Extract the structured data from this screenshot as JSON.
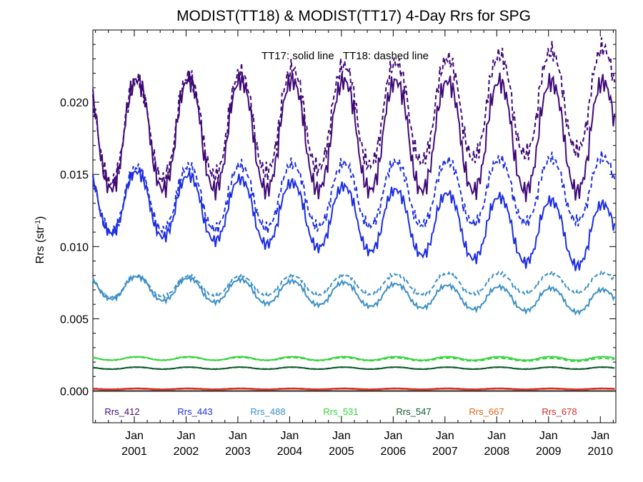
{
  "chart_data": {
    "type": "line",
    "title": "MODIST(TT18) & MODIST(TT17) 4-Day Rrs for SPG",
    "annotation": "TT17: solid line   TT18: dashed line",
    "ylabel_main": "Rrs (str",
    "ylabel_sup": "-1",
    "ylabel_end": ")",
    "xlabel": "",
    "xlim": [
      2000.2,
      2010.3
    ],
    "ylim": [
      -0.0022,
      0.025
    ],
    "y_ticks": [
      0.0,
      0.005,
      0.01,
      0.015,
      0.02
    ],
    "y_tick_labels": [
      "0.000",
      "0.005",
      "0.010",
      "0.015",
      "0.020"
    ],
    "x_ticks": [
      2001.0,
      2002.0,
      2003.0,
      2004.0,
      2005.0,
      2006.0,
      2007.0,
      2008.0,
      2009.0,
      2010.0
    ],
    "x_tick_labels_top": [
      "Jan",
      "Jan",
      "Jan",
      "Jan",
      "Jan",
      "Jan",
      "Jan",
      "Jan",
      "Jan",
      "Jan"
    ],
    "x_tick_labels_bottom": [
      "2001",
      "2002",
      "2003",
      "2004",
      "2005",
      "2006",
      "2007",
      "2008",
      "2009",
      "2010"
    ],
    "solid_series_label": "TT17",
    "dashed_series_label": "TT18",
    "series": [
      {
        "name": "Rrs_412",
        "color": "#3f0a78",
        "base": 0.0178,
        "amp17": 0.0038,
        "amp18": 0.0035,
        "trend17": -2e-05,
        "trend18": 0.00025
      },
      {
        "name": "Rrs_443",
        "color": "#1c2ee0",
        "base": 0.0132,
        "amp17": 0.0022,
        "amp18": 0.0022,
        "trend17": -0.00025,
        "trend18": 8e-05
      },
      {
        "name": "Rrs_488",
        "color": "#3b8fc7",
        "base": 0.0072,
        "amp17": 0.0008,
        "amp18": 0.0007,
        "trend17": -0.0001,
        "trend18": 3e-05
      },
      {
        "name": "Rrs_531",
        "color": "#33d43a",
        "base": 0.00225,
        "amp17": 0.00012,
        "amp18": 0.0001,
        "trend17": 0.0,
        "trend18": -1e-05
      },
      {
        "name": "Rrs_547",
        "color": "#0b5b2a",
        "base": 0.00158,
        "amp17": 7e-05,
        "amp18": 6e-05,
        "trend17": 0.0,
        "trend18": 0.0
      },
      {
        "name": "Rrs_667",
        "color": "#e0661a",
        "base": 0.00012,
        "amp17": 3e-05,
        "amp18": 3e-05,
        "trend17": 0.0,
        "trend18": 0.0
      },
      {
        "name": "Rrs_678",
        "color": "#d62a2a",
        "base": 0.00015,
        "amp17": 3e-05,
        "amp18": 3e-05,
        "trend17": 0.0,
        "trend18": 0.0
      }
    ]
  }
}
